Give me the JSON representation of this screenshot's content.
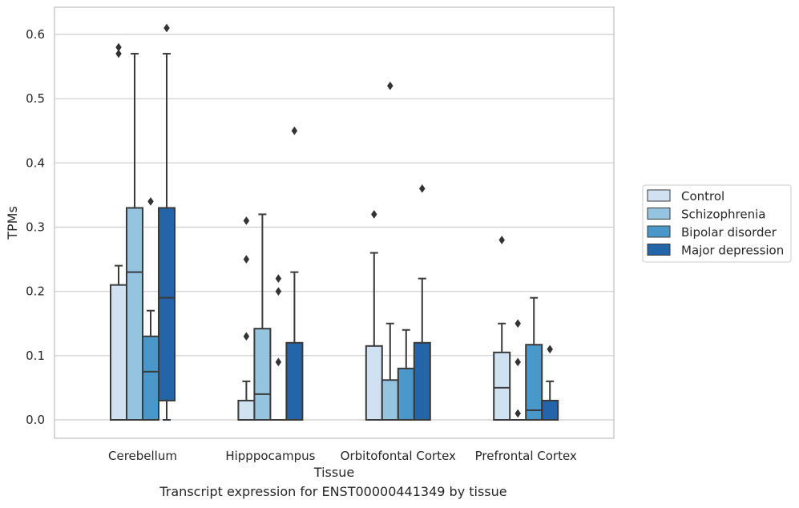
{
  "caption": "Transcript expression for ENST00000441349 by tissue",
  "chart_data": {
    "type": "box",
    "xlabel": "Tissue",
    "ylabel": "TPMs",
    "ylim": [
      -0.03,
      0.64
    ],
    "yticks": [
      0.0,
      0.1,
      0.2,
      0.3,
      0.4,
      0.5,
      0.6
    ],
    "ytick_labels": [
      "0.0",
      "0.1",
      "0.2",
      "0.3",
      "0.4",
      "0.5",
      "0.6"
    ],
    "grid": "horizontal",
    "legend_position": "right",
    "categories": [
      "Cerebellum",
      "Hipppocampus",
      "Orbitofontal Cortex",
      "Prefrontal Cortex"
    ],
    "series": [
      {
        "name": "Control",
        "color": "#d0e1f2",
        "boxes": [
          {
            "min": 0.0,
            "q1": 0.0,
            "median": 0.0,
            "q3": 0.21,
            "max": 0.24,
            "outliers": [
              0.57,
              0.58
            ]
          },
          {
            "min": 0.0,
            "q1": 0.0,
            "median": 0.0,
            "q3": 0.03,
            "max": 0.06,
            "outliers": [
              0.13,
              0.25,
              0.31
            ]
          },
          {
            "min": 0.0,
            "q1": 0.0,
            "median": 0.0,
            "q3": 0.115,
            "max": 0.26,
            "outliers": [
              0.32
            ]
          },
          {
            "min": 0.0,
            "q1": 0.0,
            "median": 0.05,
            "q3": 0.105,
            "max": 0.15,
            "outliers": [
              0.28
            ]
          }
        ]
      },
      {
        "name": "Schizophrenia",
        "color": "#94c4df",
        "boxes": [
          {
            "min": 0.0,
            "q1": 0.0,
            "median": 0.23,
            "q3": 0.33,
            "max": 0.57,
            "outliers": []
          },
          {
            "min": 0.0,
            "q1": 0.0,
            "median": 0.04,
            "q3": 0.142,
            "max": 0.32,
            "outliers": []
          },
          {
            "min": 0.0,
            "q1": 0.0,
            "median": 0.0,
            "q3": 0.062,
            "max": 0.15,
            "outliers": [
              0.52
            ]
          },
          {
            "min": 0.0,
            "q1": 0.0,
            "median": 0.0,
            "q3": 0.0,
            "max": 0.0,
            "outliers": [
              0.01,
              0.09,
              0.15
            ]
          }
        ]
      },
      {
        "name": "Bipolar disorder",
        "color": "#4a98c9",
        "boxes": [
          {
            "min": 0.0,
            "q1": 0.0,
            "median": 0.075,
            "q3": 0.13,
            "max": 0.17,
            "outliers": [
              0.34
            ]
          },
          {
            "min": 0.0,
            "q1": 0.0,
            "median": 0.0,
            "q3": 0.0,
            "max": 0.0,
            "outliers": [
              0.09,
              0.2,
              0.22
            ]
          },
          {
            "min": 0.0,
            "q1": 0.0,
            "median": 0.0,
            "q3": 0.08,
            "max": 0.14,
            "outliers": []
          },
          {
            "min": 0.0,
            "q1": 0.0,
            "median": 0.015,
            "q3": 0.117,
            "max": 0.19,
            "outliers": []
          }
        ]
      },
      {
        "name": "Major depression",
        "color": "#2464a8",
        "boxes": [
          {
            "min": 0.0,
            "q1": 0.03,
            "median": 0.19,
            "q3": 0.33,
            "max": 0.57,
            "outliers": [
              0.61
            ]
          },
          {
            "min": 0.0,
            "q1": 0.0,
            "median": 0.0,
            "q3": 0.12,
            "max": 0.23,
            "outliers": [
              0.45
            ]
          },
          {
            "min": 0.0,
            "q1": 0.0,
            "median": 0.0,
            "q3": 0.12,
            "max": 0.22,
            "outliers": [
              0.36
            ]
          },
          {
            "min": 0.0,
            "q1": 0.0,
            "median": 0.0,
            "q3": 0.03,
            "max": 0.06,
            "outliers": [
              0.11
            ]
          }
        ]
      }
    ]
  }
}
